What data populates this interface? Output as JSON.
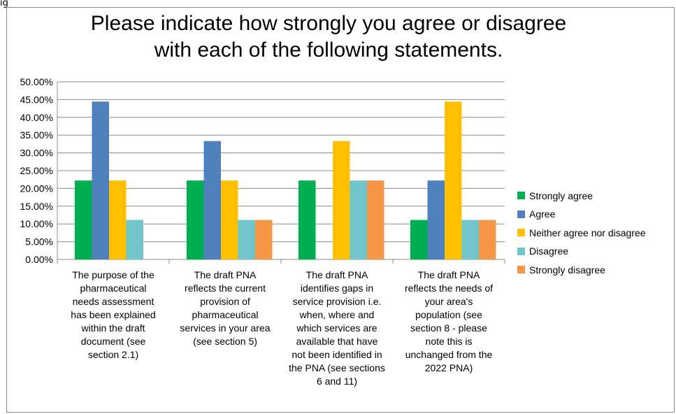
{
  "corner_label": "ig",
  "chart_data": {
    "type": "bar",
    "title_lines": [
      "Please indicate how strongly you agree or disagree",
      "with each of the following statements."
    ],
    "categories": [
      "The purpose of the pharmaceutical needs assessment has been explained within the draft document (see section 2.1)",
      "The draft PNA reflects the current provision of pharmaceutical services in your area (see section 5)",
      "The draft PNA identifies gaps in service provision i.e. when, where and which services are available that have not been identified in the PNA (see sections 6 and 11)",
      "The draft PNA reflects the needs of your area's population (see section 8 - please note this is unchanged from the 2022 PNA)"
    ],
    "category_lines": [
      [
        "The purpose of the",
        "pharmaceutical",
        "needs assessment",
        "has been explained",
        "within the draft",
        "document (see",
        "section 2.1)"
      ],
      [
        "The draft PNA",
        "reflects the current",
        "provision of",
        "pharmaceutical",
        "services in your area",
        "(see section 5)"
      ],
      [
        "The draft PNA",
        "identifies gaps in",
        "service provision i.e.",
        "when, where and",
        "which services are",
        "available that have",
        "not been identified in",
        "the PNA (see sections",
        "6 and 11)"
      ],
      [
        "The draft PNA",
        "reflects the needs of",
        "your area's",
        "population (see",
        "section 8 - please",
        "note this is",
        "unchanged from the",
        "2022 PNA)"
      ]
    ],
    "series": [
      {
        "name": "Strongly agree",
        "color": "#00b050",
        "values": [
          22.22,
          22.22,
          22.22,
          11.11
        ]
      },
      {
        "name": "Agree",
        "color": "#4f81bd",
        "values": [
          44.44,
          33.33,
          0,
          22.22
        ]
      },
      {
        "name": "Neither agree nor disagree",
        "color": "#ffc000",
        "values": [
          22.22,
          22.22,
          33.33,
          44.44
        ]
      },
      {
        "name": "Disagree",
        "color": "#72c5cc",
        "values": [
          11.11,
          11.11,
          22.22,
          11.11
        ]
      },
      {
        "name": "Strongly disagree",
        "color": "#f79646",
        "values": [
          0,
          11.11,
          22.22,
          11.11
        ]
      }
    ],
    "yticks": [
      "0.00%",
      "5.00%",
      "10.00%",
      "15.00%",
      "20.00%",
      "25.00%",
      "30.00%",
      "35.00%",
      "40.00%",
      "45.00%",
      "50.00%"
    ],
    "ylim": [
      0,
      50
    ],
    "grid": true,
    "legend_position": "right"
  }
}
